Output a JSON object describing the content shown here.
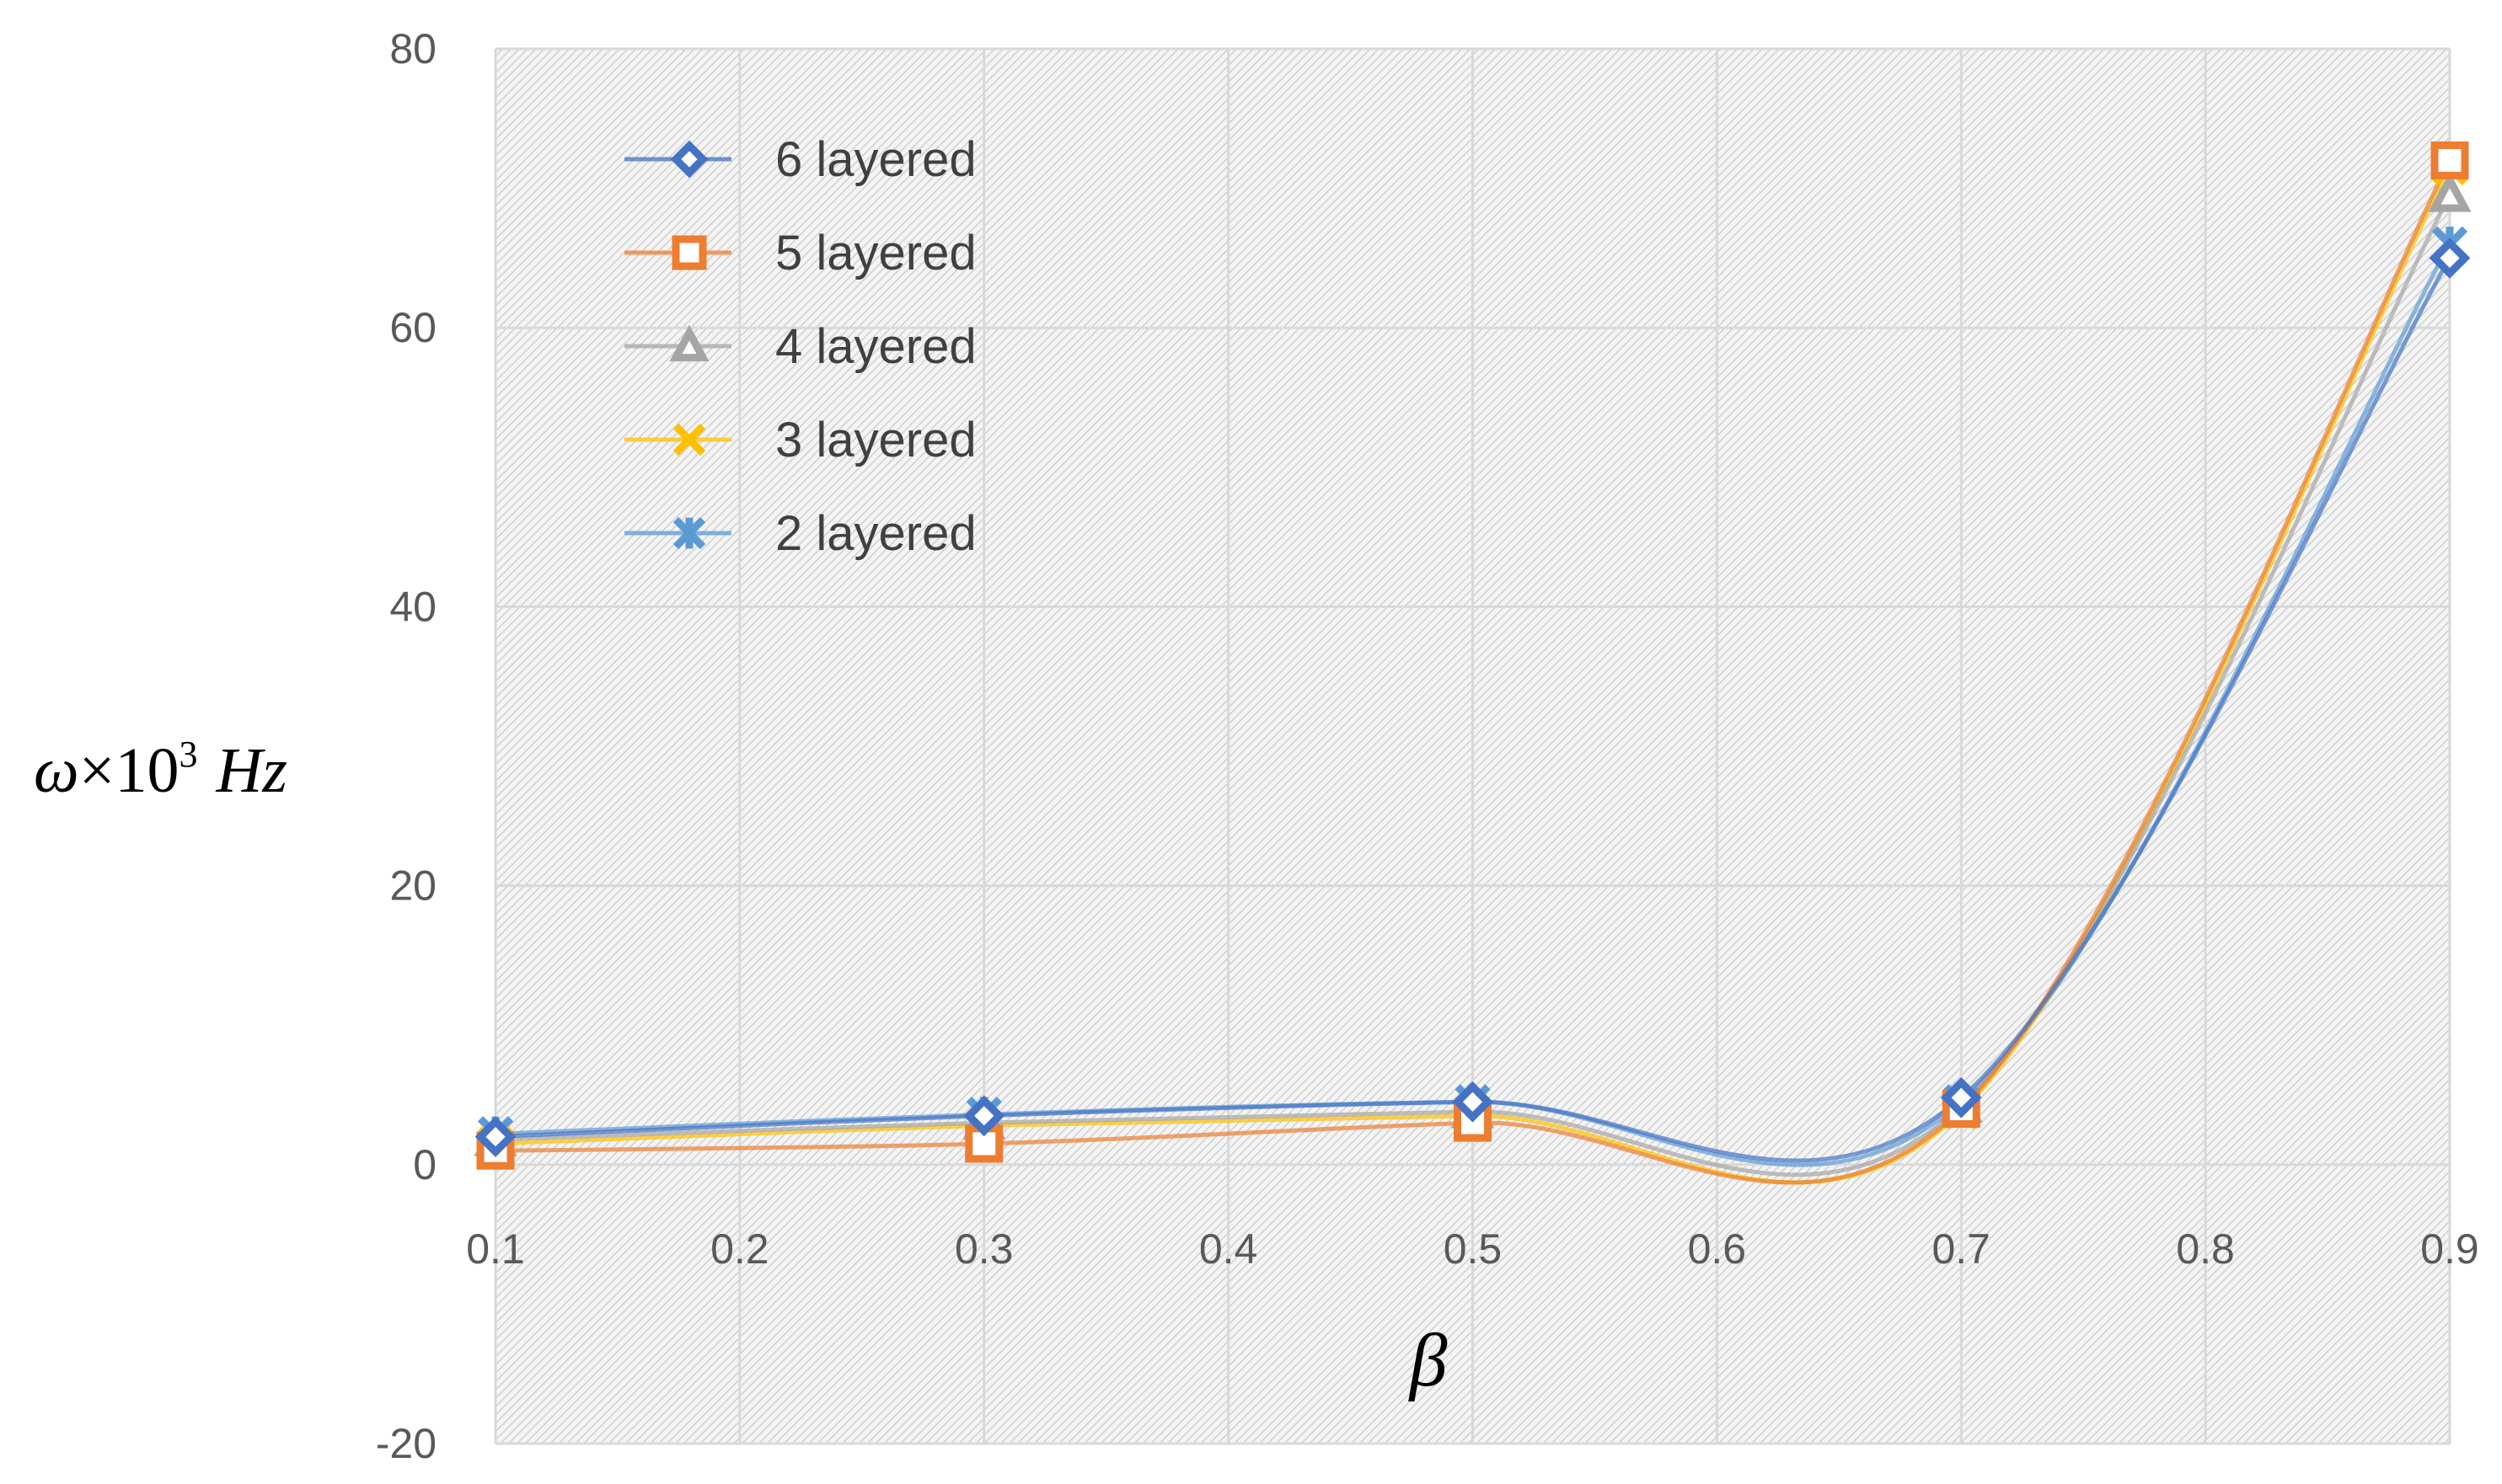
{
  "chart_data": {
    "type": "line",
    "title": "",
    "xlabel": "β",
    "ylabel": {
      "symbol": "ω",
      "times": "×",
      "base": "10",
      "exponent": "3",
      "unit": "Hz"
    },
    "xlim": [
      0.1,
      0.9
    ],
    "ylim": [
      -20,
      80
    ],
    "x_ticks": [
      "0.1",
      "0.2",
      "0.3",
      "0.4",
      "0.5",
      "0.6",
      "0.7",
      "0.8",
      "0.9"
    ],
    "y_ticks": [
      "80",
      "60",
      "40",
      "20",
      "0",
      "-20"
    ],
    "grid": true,
    "plot_background": "diagonal hatch",
    "legend_position": "top-left",
    "smoothed": true,
    "x": [
      0.1,
      0.3,
      0.5,
      0.7,
      0.9
    ],
    "series": [
      {
        "name": "6 layered",
        "values": [
          2.0,
          3.5,
          4.5,
          4.8,
          65.0
        ],
        "color": "#4472C4",
        "marker": "diamond"
      },
      {
        "name": "5 layered",
        "values": [
          1.0,
          1.5,
          3.0,
          4.0,
          72.0
        ],
        "color": "#ED7D31",
        "marker": "square"
      },
      {
        "name": "4 layered",
        "values": [
          1.8,
          3.0,
          3.8,
          4.2,
          69.5
        ],
        "color": "#A5A5A5",
        "marker": "triangle"
      },
      {
        "name": "3 layered",
        "values": [
          1.5,
          2.8,
          3.5,
          3.8,
          71.5
        ],
        "color": "#FFC000",
        "marker": "x"
      },
      {
        "name": "2 layered",
        "values": [
          2.2,
          3.6,
          4.5,
          4.5,
          66.0
        ],
        "color": "#5B9BD5",
        "marker": "asterisk"
      }
    ]
  }
}
